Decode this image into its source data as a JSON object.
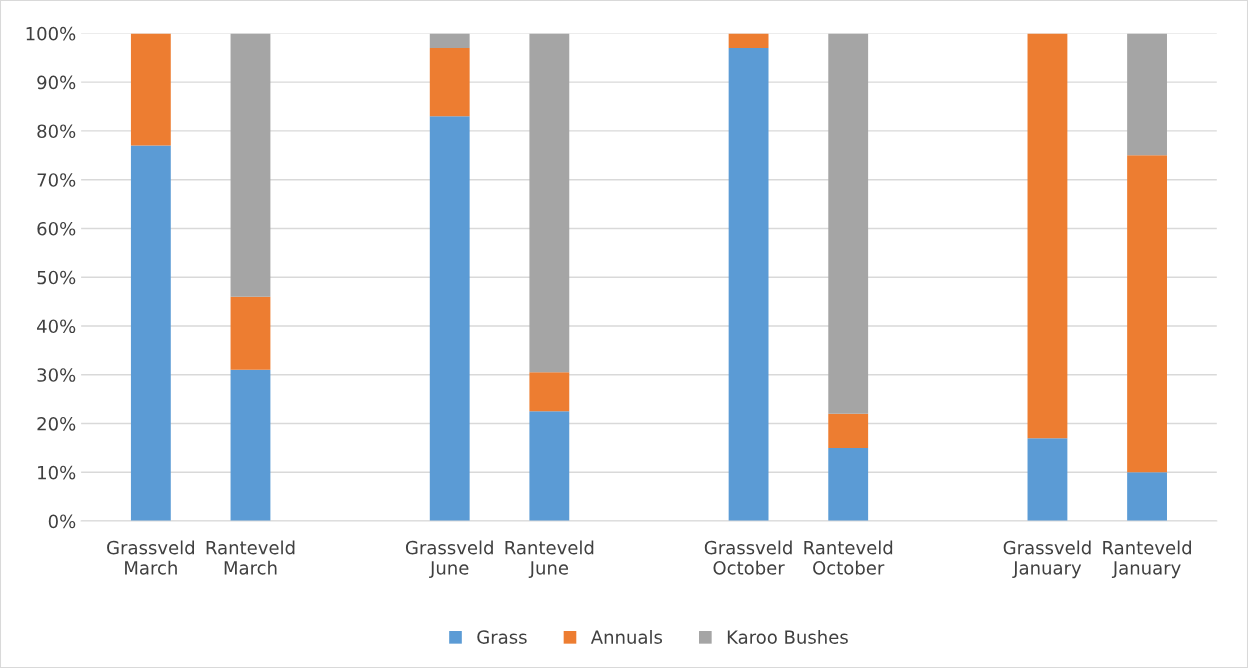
{
  "chart_data": {
    "type": "bar",
    "stacked": true,
    "categories": [
      "Grassveld\nMarch",
      "Ranteveld\nMarch",
      null,
      "Grassveld\nJune",
      "Ranteveld\nJune",
      null,
      "Grassveld\nOctober",
      "Ranteveld\nOctober",
      null,
      "Grassveld\nJanuary",
      "Ranteveld\nJanuary"
    ],
    "series": [
      {
        "name": "Grass",
        "color": "#5b9bd5",
        "values": [
          77,
          31,
          null,
          83,
          22.5,
          null,
          97,
          15,
          null,
          17,
          10
        ]
      },
      {
        "name": "Annuals",
        "color": "#ed7d31",
        "values": [
          23,
          15,
          null,
          14,
          8,
          null,
          3,
          7,
          null,
          83,
          65
        ]
      },
      {
        "name": "Karoo Bushes",
        "color": "#a5a5a5",
        "values": [
          0,
          54,
          null,
          3,
          69.5,
          null,
          0,
          78,
          null,
          0,
          25
        ]
      }
    ],
    "ylim": [
      0,
      100
    ],
    "yticks": [
      {
        "value": 0,
        "label": "0%"
      },
      {
        "value": 10,
        "label": "10%"
      },
      {
        "value": 20,
        "label": "20%"
      },
      {
        "value": 30,
        "label": "30%"
      },
      {
        "value": 40,
        "label": "40%"
      },
      {
        "value": 50,
        "label": "50%"
      },
      {
        "value": 60,
        "label": "60%"
      },
      {
        "value": 70,
        "label": "70%"
      },
      {
        "value": 80,
        "label": "80%"
      },
      {
        "value": 90,
        "label": "90%"
      },
      {
        "value": 100,
        "label": "100%"
      }
    ],
    "grid": "y",
    "legend": "bottom"
  }
}
